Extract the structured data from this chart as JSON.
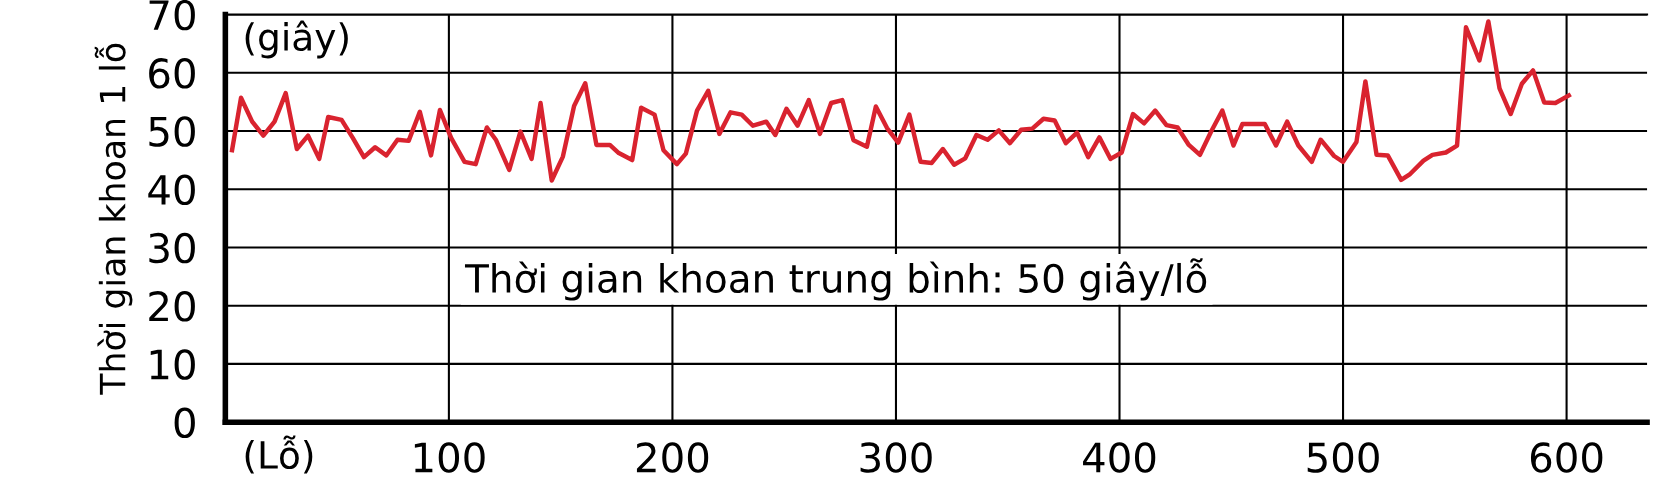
{
  "chart_data": {
    "type": "line",
    "ylabel": "Thời gian khoan 1 lỗ",
    "annotations": [
      "(giây)",
      "(Lỗ)",
      "Thời gian khoan trung bình: 50 giây/lỗ"
    ],
    "x": [
      3,
      7,
      12,
      17,
      22,
      27,
      32,
      37,
      42,
      46,
      52,
      57,
      62,
      67,
      72,
      77,
      82,
      87,
      92,
      96,
      101,
      107,
      112,
      117,
      121,
      127,
      132,
      137,
      141,
      146,
      151,
      156,
      161,
      166,
      172,
      176,
      182,
      186,
      192,
      196,
      202,
      206,
      211,
      216,
      221,
      226,
      231,
      236,
      242,
      246,
      251,
      256,
      261,
      266,
      271,
      276,
      281,
      287,
      291,
      296,
      301,
      306,
      311,
      316,
      321,
      326,
      331,
      336,
      341,
      346,
      351,
      356,
      361,
      366,
      371,
      376,
      381,
      386,
      391,
      396,
      401,
      406,
      411,
      416,
      421,
      426,
      431,
      436,
      441,
      446,
      451,
      455,
      460,
      465,
      470,
      475,
      480,
      486,
      490,
      496,
      500,
      506,
      510,
      515,
      520,
      526,
      530,
      536,
      540,
      546,
      551,
      555,
      561,
      565,
      570,
      575,
      580,
      585,
      590,
      595,
      601
    ],
    "series": [
      {
        "color": "#d9232f",
        "values": [
          46.7,
          55.7,
          51.6,
          49.2,
          51.6,
          56.5,
          46.9,
          49.2,
          45.2,
          52.4,
          51.9,
          48.8,
          45.5,
          47.2,
          45.8,
          48.5,
          48.3,
          53.3,
          45.8,
          53.6,
          48.8,
          44.7,
          44.3,
          50.6,
          48.5,
          43.3,
          49.9,
          45.2,
          54.8,
          41.5,
          45.6,
          54.3,
          58.2,
          47.6,
          47.6,
          46.2,
          45.0,
          54.0,
          52.8,
          46.7,
          44.3,
          46.1,
          53.5,
          56.9,
          49.5,
          53.2,
          52.8,
          50.9,
          51.6,
          49.3,
          53.8,
          50.9,
          55.3,
          49.5,
          54.8,
          55.3,
          48.4,
          47.3,
          54.2,
          50.5,
          48.0,
          52.8,
          44.7,
          44.5,
          46.9,
          44.2,
          45.3,
          49.3,
          48.5,
          50.1,
          47.9,
          50.2,
          50.4,
          52.1,
          51.8,
          47.9,
          49.7,
          45.5,
          48.9,
          45.2,
          46.3,
          52.9,
          51.3,
          53.5,
          51.0,
          50.6,
          47.6,
          45.9,
          49.9,
          53.5,
          47.5,
          51.2,
          51.2,
          51.2,
          47.5,
          51.6,
          47.5,
          44.7,
          48.5,
          45.7,
          44.7,
          48.1,
          58.5,
          45.9,
          45.8,
          41.6,
          42.6,
          44.9,
          45.9,
          46.3,
          47.5,
          67.8,
          62.1,
          68.8,
          57.3,
          52.9,
          58.1,
          60.4,
          54.9,
          54.8,
          56.1
        ]
      }
    ],
    "xlim": [
      0,
      636
    ],
    "ylim": [
      0,
      70
    ],
    "xticks": [
      100,
      200,
      300,
      400,
      500,
      600
    ],
    "yticks": [
      0,
      10,
      20,
      30,
      40,
      50,
      60,
      70
    ],
    "grid": true,
    "marker": "none",
    "line_style": "solid"
  }
}
